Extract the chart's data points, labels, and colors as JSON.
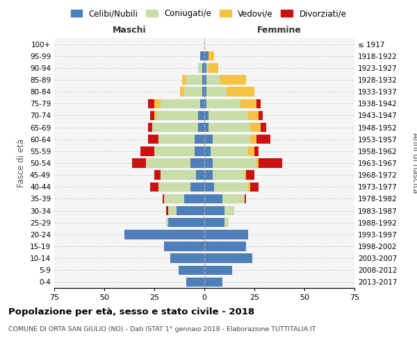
{
  "age_groups": [
    "0-4",
    "5-9",
    "10-14",
    "15-19",
    "20-24",
    "25-29",
    "30-34",
    "35-39",
    "40-44",
    "45-49",
    "50-54",
    "55-59",
    "60-64",
    "65-69",
    "70-74",
    "75-79",
    "80-84",
    "85-89",
    "90-94",
    "95-99",
    "100+"
  ],
  "birth_years": [
    "2013-2017",
    "2008-2012",
    "2003-2007",
    "1998-2002",
    "1993-1997",
    "1988-1992",
    "1983-1987",
    "1978-1982",
    "1973-1977",
    "1968-1972",
    "1963-1967",
    "1958-1962",
    "1953-1957",
    "1948-1952",
    "1943-1947",
    "1938-1942",
    "1933-1937",
    "1928-1932",
    "1923-1927",
    "1918-1922",
    "≤ 1917"
  ],
  "maschi": {
    "celibi": [
      9,
      13,
      17,
      20,
      40,
      18,
      14,
      10,
      7,
      4,
      7,
      5,
      5,
      3,
      3,
      2,
      1,
      1,
      1,
      2,
      0
    ],
    "coniugati": [
      0,
      0,
      0,
      0,
      0,
      1,
      4,
      10,
      16,
      18,
      22,
      20,
      18,
      23,
      21,
      20,
      9,
      8,
      2,
      0,
      0
    ],
    "vedovi": [
      0,
      0,
      0,
      0,
      0,
      0,
      0,
      0,
      0,
      0,
      0,
      0,
      0,
      0,
      1,
      3,
      2,
      2,
      0,
      0,
      0
    ],
    "divorziati": [
      0,
      0,
      0,
      0,
      0,
      0,
      1,
      1,
      4,
      3,
      7,
      7,
      5,
      2,
      2,
      3,
      0,
      0,
      0,
      0,
      0
    ]
  },
  "femmine": {
    "nubili": [
      9,
      14,
      24,
      21,
      22,
      10,
      10,
      9,
      5,
      4,
      4,
      3,
      4,
      2,
      2,
      1,
      1,
      1,
      1,
      2,
      0
    ],
    "coniugate": [
      0,
      0,
      0,
      0,
      0,
      2,
      5,
      11,
      17,
      16,
      22,
      19,
      19,
      21,
      20,
      17,
      10,
      7,
      1,
      0,
      0
    ],
    "vedove": [
      0,
      0,
      0,
      0,
      0,
      0,
      0,
      0,
      1,
      1,
      1,
      3,
      3,
      5,
      5,
      8,
      14,
      13,
      5,
      3,
      0
    ],
    "divorziate": [
      0,
      0,
      0,
      0,
      0,
      0,
      0,
      1,
      4,
      4,
      12,
      2,
      7,
      3,
      2,
      2,
      0,
      0,
      0,
      0,
      0
    ]
  },
  "colors": {
    "celibi": "#4e7fbb",
    "coniugati": "#c8dda8",
    "vedovi": "#f5c242",
    "divorziati": "#cc1111"
  },
  "xlim": 75,
  "title": "Popolazione per età, sesso e stato civile - 2018",
  "subtitle": "COMUNE DI ORTA SAN GIULIO (NO) - Dati ISTAT 1° gennaio 2018 - Elaborazione TUTTITALIA.IT",
  "ylabel": "Fasce di età",
  "ylabel_right": "Anni di nascita",
  "label_maschi": "Maschi",
  "label_femmine": "Femmine",
  "legend_labels": [
    "Celibi/Nubili",
    "Coniugati/e",
    "Vedovi/e",
    "Divorziati/e"
  ],
  "background_color": "#f5f5f5"
}
